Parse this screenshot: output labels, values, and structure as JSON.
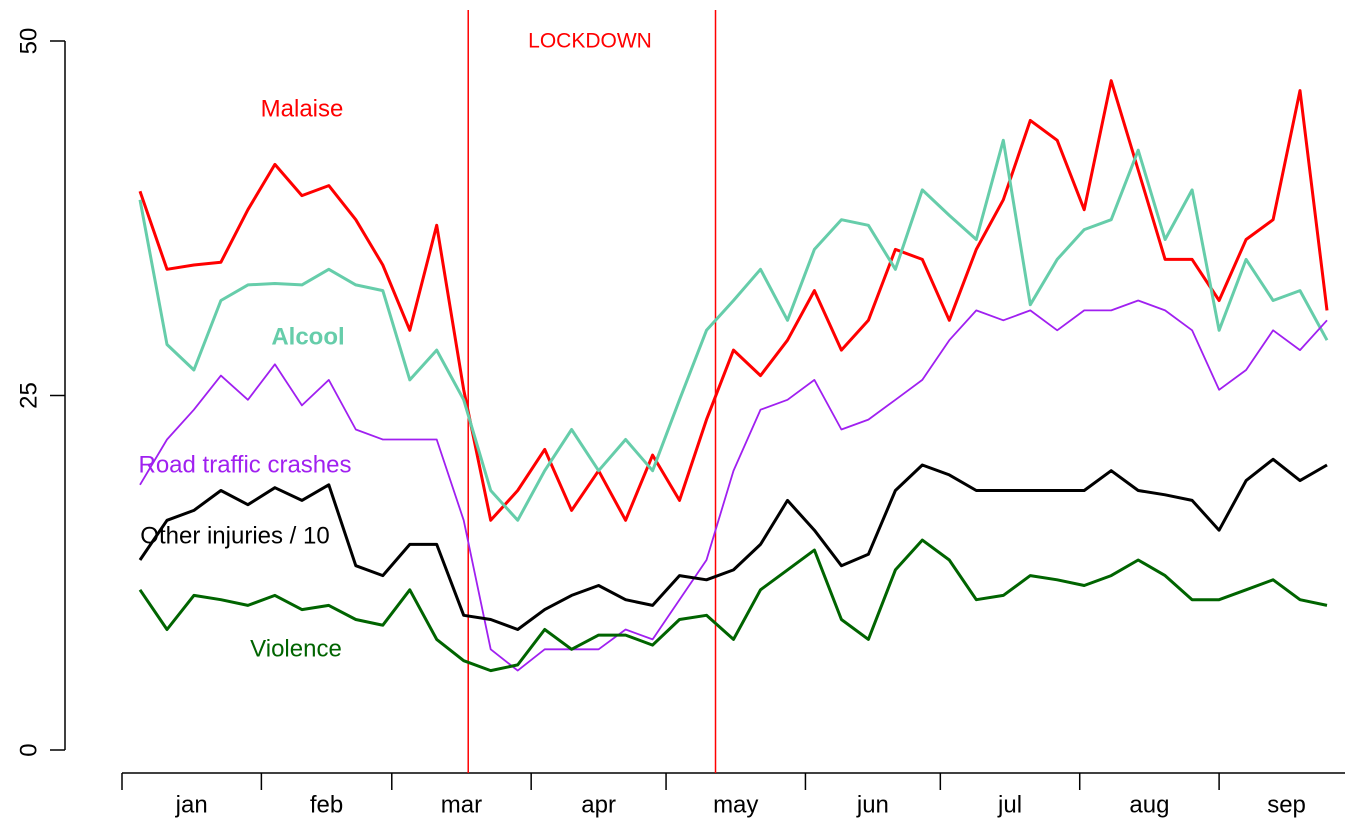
{
  "chart_data": {
    "type": "line",
    "annotation": "LOCKDOWN",
    "lockdown": [
      77,
      132
    ],
    "lockdown_color": "#ff0000",
    "xticks": [
      0,
      31,
      60,
      91,
      121,
      152,
      182,
      213,
      244,
      274
    ],
    "months": [
      "jan",
      "feb",
      "mar",
      "apr",
      "may",
      "jun",
      "jul",
      "aug",
      "sep"
    ],
    "xlim": [
      0,
      272
    ],
    "ylim": [
      0,
      50
    ],
    "yticks": [
      0,
      25,
      50
    ],
    "x": [
      4,
      10,
      16,
      22,
      28,
      34,
      40,
      46,
      52,
      58,
      64,
      70,
      76,
      82,
      88,
      94,
      100,
      106,
      112,
      118,
      124,
      130,
      136,
      142,
      148,
      154,
      160,
      166,
      172,
      178,
      184,
      190,
      196,
      202,
      208,
      214,
      220,
      226,
      232,
      238,
      244,
      250,
      256,
      262,
      268
    ],
    "series": [
      {
        "name": "Malaise",
        "color": "#ff0000",
        "values": [
          39.4,
          33.9,
          34.2,
          34.4,
          38.1,
          41.3,
          39.1,
          39.8,
          37.4,
          34.2,
          29.6,
          37.0,
          25.4,
          16.2,
          18.3,
          21.2,
          16.9,
          19.7,
          16.2,
          20.8,
          17.6,
          23.3,
          28.2,
          26.4,
          28.9,
          32.4,
          28.2,
          30.3,
          35.3,
          34.6,
          30.3,
          35.3,
          38.8,
          44.4,
          43.0,
          38.1,
          47.2,
          40.9,
          34.6,
          34.6,
          31.7,
          36.0,
          37.4,
          46.5,
          31.0
        ]
      },
      {
        "name": "Alcool",
        "color": "#66cdaa",
        "values": [
          38.8,
          28.6,
          26.8,
          31.7,
          32.8,
          32.9,
          32.8,
          33.9,
          32.8,
          32.4,
          26.1,
          28.2,
          24.7,
          18.3,
          16.2,
          19.7,
          22.6,
          19.7,
          21.9,
          19.7,
          24.7,
          29.6,
          31.7,
          33.9,
          30.3,
          35.3,
          37.4,
          37.0,
          33.9,
          39.5,
          37.7,
          36.0,
          43.0,
          31.4,
          34.6,
          36.7,
          37.4,
          42.3,
          36.0,
          39.5,
          29.6,
          34.6,
          31.7,
          32.4,
          28.9
        ]
      },
      {
        "name": "Road traffic crashes",
        "color": "#a020f0",
        "values": [
          18.7,
          21.9,
          24.0,
          26.4,
          24.7,
          27.2,
          24.3,
          26.1,
          22.6,
          21.9,
          21.9,
          21.9,
          16.2,
          7.1,
          5.6,
          7.1,
          7.1,
          7.1,
          8.5,
          7.8,
          10.6,
          13.4,
          19.7,
          24.0,
          24.7,
          26.1,
          22.6,
          23.3,
          24.7,
          26.1,
          28.9,
          31.0,
          30.3,
          31.0,
          29.6,
          31.0,
          31.0,
          31.7,
          31.0,
          29.6,
          25.4,
          26.8,
          29.6,
          28.2,
          30.3
        ]
      },
      {
        "name": "Other injuries / 10",
        "color": "#000000",
        "values": [
          13.4,
          16.2,
          16.9,
          18.3,
          17.3,
          18.5,
          17.6,
          18.7,
          13.0,
          12.3,
          14.5,
          14.5,
          9.5,
          9.2,
          8.5,
          9.9,
          10.9,
          11.6,
          10.6,
          10.2,
          12.3,
          12.0,
          12.7,
          14.5,
          17.6,
          15.5,
          13.0,
          13.8,
          18.3,
          20.1,
          19.4,
          18.3,
          18.3,
          18.3,
          18.3,
          18.3,
          19.7,
          18.3,
          18.0,
          17.6,
          15.5,
          19.0,
          20.5,
          19.0,
          20.1
        ]
      },
      {
        "name": "Violence",
        "color": "#006400",
        "values": [
          11.3,
          8.5,
          10.9,
          10.6,
          10.2,
          10.9,
          9.9,
          10.2,
          9.2,
          8.8,
          11.3,
          7.8,
          6.3,
          5.6,
          6.0,
          8.5,
          7.1,
          8.1,
          8.1,
          7.4,
          9.2,
          9.5,
          7.8,
          11.3,
          12.7,
          14.1,
          9.2,
          7.8,
          12.7,
          14.8,
          13.4,
          10.6,
          10.9,
          12.3,
          12.0,
          11.6,
          12.3,
          13.4,
          12.3,
          10.6,
          10.6,
          11.3,
          12.0,
          10.6,
          10.2
        ]
      }
    ]
  }
}
